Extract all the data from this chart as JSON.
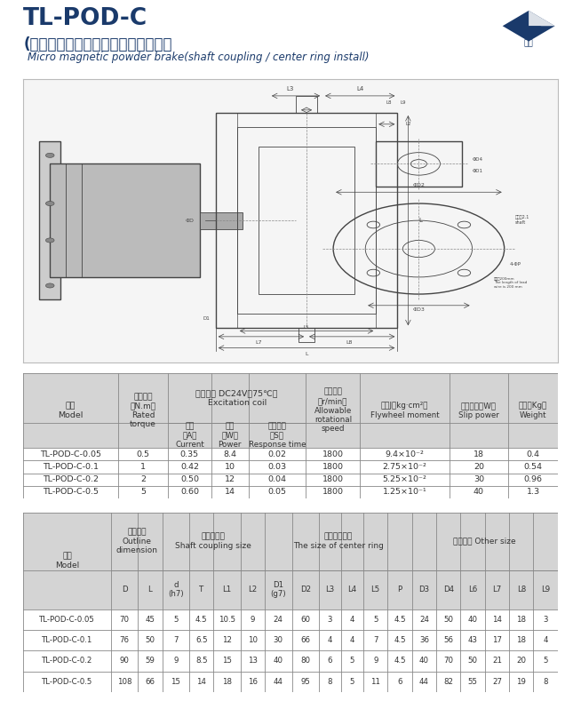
{
  "title_main": "TL-POD-C",
  "title_chinese": "(軸聤結、止口支擐）微型磁粉制動器",
  "title_english": "Micro magnetic powder brake(shaft coupling / center ring install)",
  "bg_color": "#ffffff",
  "header_bg": "#d4d4d4",
  "table1_data": [
    [
      "TL-POD-C-0.05",
      "0.5",
      "0.35",
      "8.4",
      "0.02",
      "1800",
      "9.4×10⁻²",
      "18",
      "0.4"
    ],
    [
      "TL-POD-C-0.1",
      "1",
      "0.42",
      "10",
      "0.03",
      "1800",
      "2.75×10⁻²",
      "20",
      "0.54"
    ],
    [
      "TL-POD-C-0.2",
      "2",
      "0.50",
      "12",
      "0.04",
      "1800",
      "5.25×10⁻²",
      "30",
      "0.96"
    ],
    [
      "TL-POD-C-0.5",
      "5",
      "0.60",
      "14",
      "0.05",
      "1800",
      "1.25×10⁻¹",
      "40",
      "1.3"
    ]
  ],
  "table2_data": [
    [
      "TL-POD-C-0.05",
      "70",
      "45",
      "5",
      "4.5",
      "10.5",
      "9",
      "24",
      "60",
      "3",
      "4",
      "5",
      "4.5",
      "24",
      "50",
      "40",
      "14",
      "18",
      "3"
    ],
    [
      "TL-POD-C-0.1",
      "76",
      "50",
      "7",
      "6.5",
      "12",
      "10",
      "30",
      "66",
      "4",
      "4",
      "7",
      "4.5",
      "36",
      "56",
      "43",
      "17",
      "18",
      "4"
    ],
    [
      "TL-POD-C-0.2",
      "90",
      "59",
      "9",
      "8.5",
      "15",
      "13",
      "40",
      "80",
      "6",
      "5",
      "9",
      "4.5",
      "40",
      "70",
      "50",
      "21",
      "20",
      "5"
    ],
    [
      "TL-POD-C-0.5",
      "108",
      "66",
      "15",
      "14",
      "18",
      "16",
      "44",
      "95",
      "8",
      "5",
      "11",
      "6",
      "44",
      "82",
      "55",
      "27",
      "19",
      "8"
    ]
  ],
  "text_color_main": "#1a3a6b",
  "text_color_table": "#333333",
  "border_color": "#888888",
  "drawing_bg": "#f5f5f5",
  "drawing_border": "#bbbbbb"
}
